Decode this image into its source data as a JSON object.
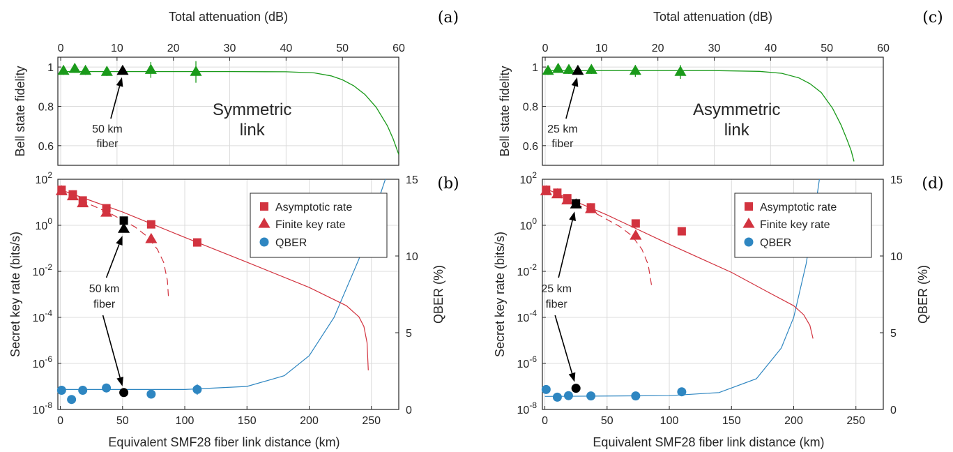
{
  "colors": {
    "fidelity": "#1a9a1a",
    "rate": "#d2333f",
    "qber": "#2e86c1",
    "highlight": "#000000",
    "grid": "#dcdcdc",
    "axis": "#262626"
  },
  "chart_data": [
    {
      "panel": "a",
      "type": "scatter",
      "x_scale": "attenuation",
      "xlabel_top": "Total attenuation (dB)",
      "xticks_top": [
        0,
        10,
        20,
        30,
        40,
        50,
        60
      ],
      "xlim_top": [
        -0.5,
        60
      ],
      "ylabel": "Bell state fidelity",
      "ylim": [
        0.5,
        1.05
      ],
      "yticks": [
        0.6,
        0.8,
        1
      ],
      "ytick_labels": [
        "0.6",
        "0.8",
        "1"
      ],
      "grid": true,
      "link_label": [
        "Symmetric",
        "link"
      ],
      "annotation": [
        "50 km",
        "fiber"
      ],
      "points": [
        {
          "x": 0.5,
          "y": 0.98,
          "err": 0.02
        },
        {
          "x": 2.5,
          "y": 0.99,
          "err": 0.02
        },
        {
          "x": 4.4,
          "y": 0.98,
          "err": 0.02
        },
        {
          "x": 8.2,
          "y": 0.975,
          "err": 0.02
        },
        {
          "x": 16,
          "y": 0.985,
          "err": 0.04
        },
        {
          "x": 24,
          "y": 0.975,
          "err": 0.055
        }
      ],
      "highlight_point": {
        "x": 11,
        "y": 0.98
      },
      "model": [
        [
          0,
          0.977
        ],
        [
          30,
          0.977
        ],
        [
          40,
          0.976
        ],
        [
          45,
          0.97
        ],
        [
          48,
          0.955
        ],
        [
          50,
          0.935
        ],
        [
          52,
          0.905
        ],
        [
          54,
          0.86
        ],
        [
          56,
          0.795
        ],
        [
          58,
          0.7
        ],
        [
          59,
          0.635
        ],
        [
          60,
          0.555
        ]
      ]
    },
    {
      "panel": "b",
      "type": "scatter",
      "xlabel": "Equivalent SMF28 fiber link distance (km)",
      "xticks": [
        0,
        50,
        100,
        150,
        200,
        250
      ],
      "xlim": [
        -2,
        272
      ],
      "ylabel": "Secret key rate (bits/s)",
      "ylabel_right": "QBER (%)",
      "y_log_exponents": [
        -8,
        -6,
        -4,
        -2,
        0,
        2
      ],
      "y_right_ticks": [
        0,
        5,
        10,
        15
      ],
      "y_right_lim": [
        0,
        15
      ],
      "grid": true,
      "annotation": [
        "50 km",
        "fiber"
      ],
      "legend": [
        "Asymptotic rate",
        "Finite key rate",
        "QBER"
      ],
      "asymptotic_rate": [
        [
          1,
          35
        ],
        [
          10,
          22
        ],
        [
          18,
          12
        ],
        [
          37,
          5.5
        ],
        [
          73,
          1.1
        ],
        [
          110,
          0.18
        ]
      ],
      "finite_key_rate": [
        [
          1,
          30
        ],
        [
          10,
          18
        ],
        [
          18,
          9
        ],
        [
          37,
          3.5
        ],
        [
          73,
          0.25
        ]
      ],
      "qber": [
        [
          1,
          1.25,
          0
        ],
        [
          9,
          0.65,
          0
        ],
        [
          18,
          1.25,
          0
        ],
        [
          37,
          1.4,
          0
        ],
        [
          73,
          1.0,
          0
        ],
        [
          110,
          1.3,
          0.35
        ]
      ],
      "highlight_rate": {
        "x": 51,
        "asymptotic": 1.6,
        "finite": 0.7
      },
      "highlight_qber": {
        "x": 51,
        "y": 1.1
      },
      "model_rate": [
        [
          0,
          35
        ],
        [
          50,
          3.8
        ],
        [
          100,
          0.3
        ],
        [
          150,
          0.025
        ],
        [
          200,
          0.002
        ],
        [
          230,
          0.00032
        ],
        [
          240,
          0.000105
        ],
        [
          244,
          4e-05
        ],
        [
          246.5,
          8e-06
        ],
        [
          247.5,
          5e-07
        ]
      ],
      "model_finite": [
        [
          0,
          30
        ],
        [
          20,
          10
        ],
        [
          40,
          3.3
        ],
        [
          60,
          0.85
        ],
        [
          70,
          0.32
        ],
        [
          78,
          0.09
        ],
        [
          83,
          0.025
        ],
        [
          86,
          0.004
        ],
        [
          87,
          0.00065
        ]
      ],
      "model_qber": [
        [
          0,
          1.3
        ],
        [
          100,
          1.3
        ],
        [
          150,
          1.5
        ],
        [
          180,
          2.2
        ],
        [
          200,
          3.5
        ],
        [
          220,
          6.0
        ],
        [
          240,
          9.8
        ],
        [
          255,
          13.5
        ],
        [
          262,
          15.2
        ]
      ]
    },
    {
      "panel": "c",
      "type": "scatter",
      "x_scale": "attenuation",
      "xlabel_top": "Total attenuation (dB)",
      "xticks_top": [
        0,
        10,
        20,
        30,
        40,
        50,
        60
      ],
      "xlim_top": [
        -0.5,
        60
      ],
      "ylabel": "Bell state fidelity",
      "ylim": [
        0.5,
        1.05
      ],
      "yticks": [
        0.6,
        0.8,
        1
      ],
      "ytick_labels": [
        "0.6",
        "0.8",
        "1"
      ],
      "grid": true,
      "link_label": [
        "Asymmetric",
        "link"
      ],
      "annotation": [
        "25 km",
        "fiber"
      ],
      "points": [
        {
          "x": 0.5,
          "y": 0.98,
          "err": 0.02
        },
        {
          "x": 2.3,
          "y": 0.99,
          "err": 0.02
        },
        {
          "x": 4.2,
          "y": 0.985,
          "err": 0.02
        },
        {
          "x": 8.2,
          "y": 0.985,
          "err": 0.02
        },
        {
          "x": 16,
          "y": 0.98,
          "err": 0.03
        },
        {
          "x": 24,
          "y": 0.975,
          "err": 0.035
        }
      ],
      "highlight_point": {
        "x": 5.8,
        "y": 0.98
      },
      "model": [
        [
          0,
          0.982
        ],
        [
          30,
          0.982
        ],
        [
          38,
          0.978
        ],
        [
          42,
          0.968
        ],
        [
          45,
          0.945
        ],
        [
          47,
          0.915
        ],
        [
          49,
          0.87
        ],
        [
          51,
          0.79
        ],
        [
          52.5,
          0.705
        ],
        [
          53.5,
          0.635
        ],
        [
          54.3,
          0.575
        ],
        [
          54.8,
          0.52
        ]
      ]
    },
    {
      "panel": "d",
      "type": "scatter",
      "xlabel": "Equivalent SMF28 fiber link distance (km)",
      "xticks": [
        0,
        50,
        100,
        150,
        200,
        250
      ],
      "xlim": [
        -2,
        272
      ],
      "ylabel": "Secret key rate (bits/s)",
      "ylabel_right": "QBER (%)",
      "y_log_exponents": [
        -8,
        -6,
        -4,
        -2,
        0,
        2
      ],
      "y_right_ticks": [
        0,
        5,
        10,
        15
      ],
      "y_right_lim": [
        0,
        15
      ],
      "grid": true,
      "annotation": [
        "25 km",
        "fiber"
      ],
      "legend": [
        "Asymptotic rate",
        "Finite key rate",
        "QBER"
      ],
      "asymptotic_rate": [
        [
          1,
          35
        ],
        [
          10,
          26
        ],
        [
          18,
          15
        ],
        [
          37,
          6
        ],
        [
          73,
          1.2
        ],
        [
          110,
          0.55
        ]
      ],
      "finite_key_rate": [
        [
          1,
          30
        ],
        [
          10,
          22
        ],
        [
          18,
          12
        ],
        [
          37,
          5
        ],
        [
          73,
          0.35
        ]
      ],
      "qber": [
        [
          1,
          1.3,
          0
        ],
        [
          10,
          0.8,
          0
        ],
        [
          19,
          0.9,
          0
        ],
        [
          37,
          0.88,
          0
        ],
        [
          73,
          0.88,
          0
        ],
        [
          110,
          1.15,
          0
        ]
      ],
      "highlight_rate": {
        "x": 25,
        "asymptotic": 9,
        "finite": 8
      },
      "highlight_qber": {
        "x": 25,
        "y": 1.38
      },
      "model_rate": [
        [
          0,
          40
        ],
        [
          50,
          2.8
        ],
        [
          100,
          0.15
        ],
        [
          150,
          0.009
        ],
        [
          180,
          0.0012
        ],
        [
          200,
          0.00032
        ],
        [
          208,
          0.00013
        ],
        [
          213,
          4.5e-05
        ],
        [
          215.5,
          1.2e-05
        ]
      ],
      "model_finite": [
        [
          0,
          30
        ],
        [
          20,
          11
        ],
        [
          40,
          3.5
        ],
        [
          60,
          0.9
        ],
        [
          70,
          0.35
        ],
        [
          78,
          0.09
        ],
        [
          83,
          0.02
        ],
        [
          86,
          0.002
        ]
      ],
      "model_qber": [
        [
          0,
          0.85
        ],
        [
          100,
          0.9
        ],
        [
          140,
          1.1
        ],
        [
          170,
          2.0
        ],
        [
          190,
          4.0
        ],
        [
          200,
          6.0
        ],
        [
          210,
          9.5
        ],
        [
          218,
          13.5
        ],
        [
          221,
          15.2
        ]
      ]
    }
  ]
}
